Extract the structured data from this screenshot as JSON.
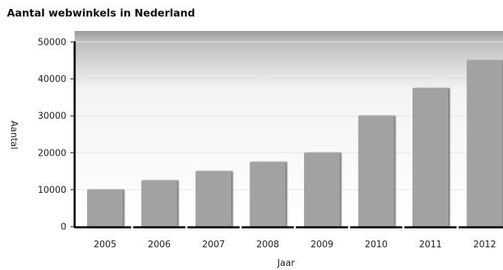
{
  "chart_data": {
    "type": "bar",
    "title": "Aantal webwinkels in Nederland",
    "xlabel": "Jaar",
    "ylabel": "Aantal",
    "categories": [
      "2005",
      "2006",
      "2007",
      "2008",
      "2009",
      "2010",
      "2011",
      "2012"
    ],
    "values": [
      10000,
      12500,
      15000,
      17500,
      20000,
      30000,
      37500,
      45000
    ],
    "ylim": [
      0,
      50000
    ],
    "yticks": [
      0,
      10000,
      20000,
      30000,
      40000,
      50000
    ],
    "grid": true,
    "legend": "none",
    "colors": {
      "bar": "#a2a2a2",
      "bar_shadow": "#5c5c5c",
      "axis": "#000000",
      "grid": "#e6e6e6",
      "plot_gradient_top": "#9a9a9a",
      "plot_gradient_bottom": "#ffffff"
    }
  }
}
